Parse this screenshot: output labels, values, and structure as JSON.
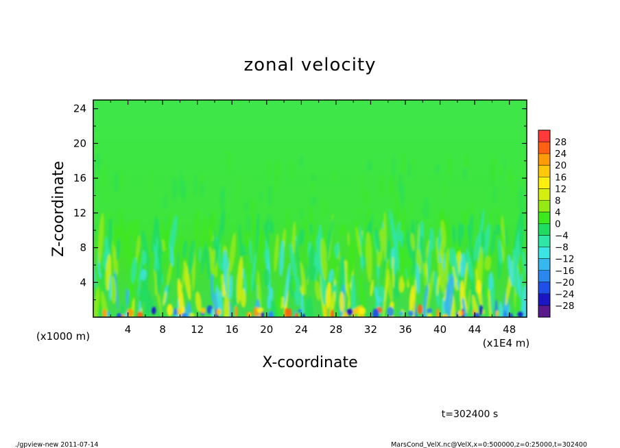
{
  "chart_data": {
    "type": "heatmap",
    "title": "zonal velocity",
    "xlabel": "X-coordinate",
    "ylabel": "Z-coordinate",
    "x_unit_note": "(x1E4 m)",
    "y_unit_note": "(x1000 m)",
    "xlim": [
      0,
      50
    ],
    "ylim": [
      0,
      25
    ],
    "x_ticks": [
      4,
      8,
      12,
      16,
      20,
      24,
      28,
      32,
      36,
      40,
      44,
      48
    ],
    "y_ticks": [
      4,
      8,
      12,
      16,
      20,
      24
    ],
    "colorbar": {
      "levels": [
        -32,
        -28,
        -24,
        -20,
        -16,
        -12,
        -8,
        -4,
        0,
        4,
        8,
        12,
        16,
        20,
        24,
        28,
        32
      ],
      "tick_labels": [
        "28",
        "24",
        "20",
        "16",
        "12",
        "8",
        "4",
        "0",
        "-4",
        "-8",
        "-12",
        "-16",
        "-20",
        "-24",
        "-28"
      ],
      "colors": [
        "#5a1a8c",
        "#1b16c4",
        "#1f4fe6",
        "#2b86ee",
        "#35b8ee",
        "#3ee3e3",
        "#2fe6a6",
        "#22dc62",
        "#3ee81e",
        "#95ea16",
        "#d4ee10",
        "#ffef10",
        "#ffc80a",
        "#ff9a08",
        "#ff6012",
        "#ff3a3a"
      ]
    },
    "field_description": {
      "background_value_range": [
        -4,
        4
      ],
      "perturbation_layer_top": 10,
      "peak_values_near_surface": [
        -28,
        28
      ]
    }
  },
  "annotations": {
    "time_label": "t=302400 s",
    "footer_left": "./gpview-new  2011-07-14",
    "footer_right": "MarsCond_VelX.nc@VelX,x=0:500000,z=0:25000,t=302400"
  }
}
